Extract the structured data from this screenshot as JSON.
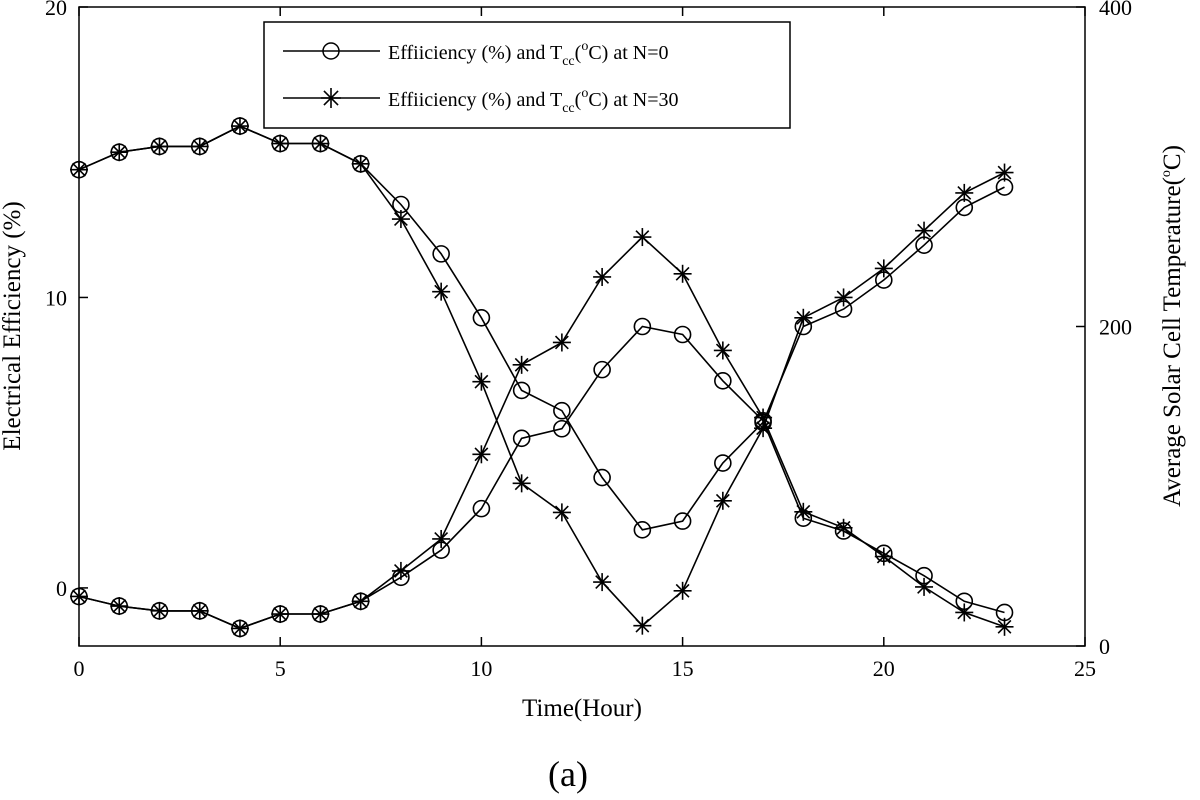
{
  "chart_data": {
    "type": "line",
    "caption": "(a)",
    "xlabel": "Time(Hour)",
    "ylabel_left": "Electrical Efficiency (%)",
    "ylabel_right_main": "Average Solar Cell Temperature(",
    "ylabel_right_sup": "o",
    "ylabel_right_end": "C)",
    "xlim": [
      0,
      25
    ],
    "ylim_left": [
      -2,
      20
    ],
    "ylim_right": [
      0,
      400
    ],
    "x_ticks": [
      0,
      5,
      10,
      15,
      20,
      25
    ],
    "y_left_ticks": [
      0,
      10,
      20
    ],
    "y_right_ticks": [
      0,
      200,
      400
    ],
    "legend_position": "top-center",
    "grid": false,
    "x": [
      0,
      1,
      2,
      3,
      4,
      5,
      6,
      7,
      8,
      9,
      10,
      11,
      12,
      13,
      14,
      15,
      16,
      17,
      18,
      19,
      20,
      21,
      22,
      23
    ],
    "legend": [
      {
        "marker": "circle",
        "prefix": "Effiiciency (%) and T",
        "sub": "cc",
        "open": "(",
        "sup": "o",
        "suffix": "C) at N=0"
      },
      {
        "marker": "star",
        "prefix": "Effiiciency (%) and T",
        "sub": "cc",
        "open": "(",
        "sup": "o",
        "suffix": "C) at N=30"
      }
    ],
    "series": [
      {
        "marker": "circle",
        "axis": "left",
        "quantity": "efficiency",
        "values": [
          14.4,
          15.0,
          15.2,
          15.2,
          15.9,
          15.3,
          15.3,
          14.6,
          13.2,
          11.5,
          9.3,
          6.8,
          6.1,
          3.8,
          2.0,
          2.3,
          4.3,
          5.7,
          9.0,
          9.6,
          10.6,
          11.8,
          13.1,
          13.8
        ]
      },
      {
        "marker": "circle",
        "axis": "right",
        "quantity": "temperature",
        "values": [
          31,
          25,
          22,
          22,
          11,
          20,
          20,
          28,
          43,
          60,
          86,
          130,
          136,
          173,
          200,
          195,
          166,
          141,
          80,
          72,
          58,
          44,
          28,
          21
        ]
      },
      {
        "marker": "star",
        "axis": "left",
        "quantity": "efficiency",
        "values": [
          14.4,
          15.0,
          15.2,
          15.2,
          15.9,
          15.3,
          15.3,
          14.6,
          12.7,
          10.2,
          7.1,
          3.6,
          2.6,
          0.2,
          -1.3,
          -0.1,
          3.0,
          5.5,
          9.3,
          10.0,
          11.0,
          12.3,
          13.6,
          14.3
        ]
      },
      {
        "marker": "star",
        "axis": "right",
        "quantity": "temperature",
        "values": [
          31,
          25,
          22,
          22,
          11,
          20,
          20,
          28,
          47,
          67,
          120,
          176,
          190,
          231,
          256,
          233,
          185,
          143,
          84,
          74,
          56,
          37,
          21,
          12
        ]
      }
    ]
  }
}
